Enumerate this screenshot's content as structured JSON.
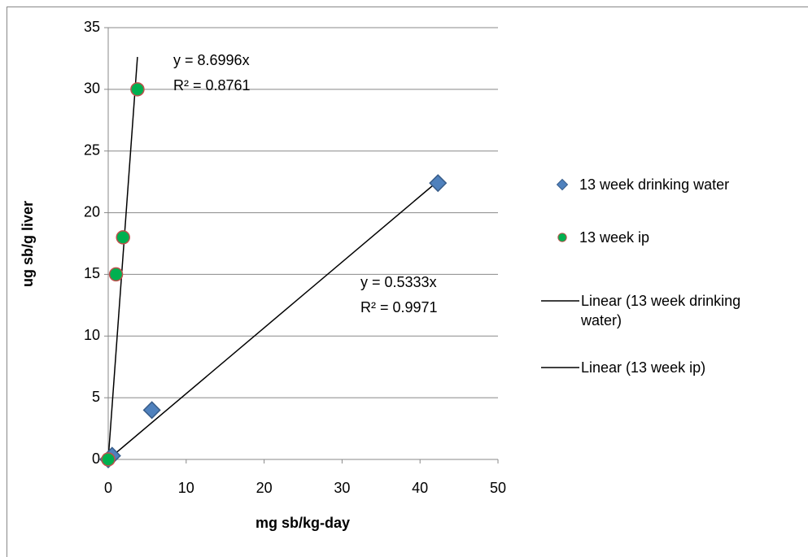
{
  "chart_data": {
    "type": "scatter",
    "xlabel": "mg sb/kg-day",
    "ylabel": "ug sb/g liver",
    "xlim": [
      0,
      50
    ],
    "xticks": [
      0,
      10,
      20,
      30,
      40,
      50
    ],
    "ylim": [
      0,
      35
    ],
    "yticks": [
      0,
      5,
      10,
      15,
      20,
      25,
      30,
      35
    ],
    "grid": true,
    "legend": "right",
    "series": [
      {
        "name": "13 week drinking water",
        "marker": "diamond",
        "color": "#4f81bd",
        "edgecolor": "#385d8a",
        "x": [
          0,
          0.5,
          5.6,
          42.3
        ],
        "values": [
          0,
          0.3,
          4,
          22.4
        ]
      },
      {
        "name": "13 week ip",
        "marker": "circle",
        "color": "#00b050",
        "edgecolor": "#c0504d",
        "x": [
          0,
          1.0,
          1.9,
          3.75
        ],
        "values": [
          0,
          15,
          18,
          30
        ]
      }
    ],
    "trendlines": [
      {
        "name": "Linear (13 week drinking water)",
        "color": "#000000",
        "slope": 0.5333,
        "equation": "y = 0.5333x",
        "r2_label": "R² = 0.9971"
      },
      {
        "name": "Linear (13 week ip)",
        "color": "#000000",
        "slope": 8.6996,
        "equation": "y = 8.6996x",
        "r2_label": "R² = 0.8761"
      }
    ]
  }
}
